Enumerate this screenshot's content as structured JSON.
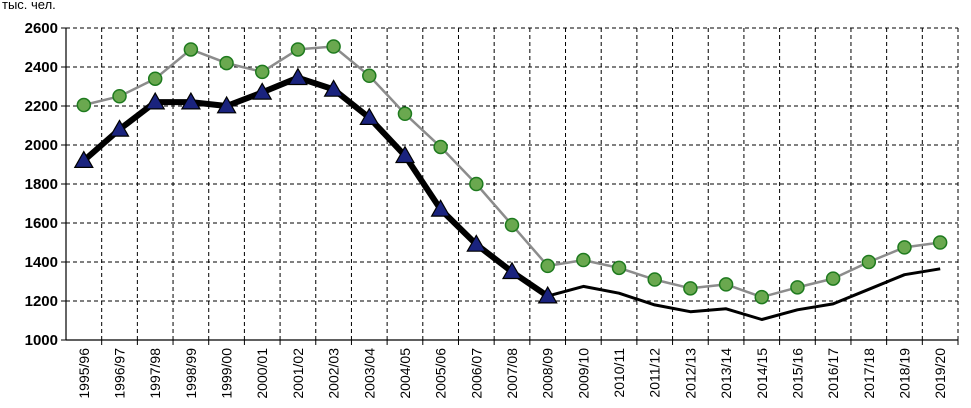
{
  "chart_data": {
    "type": "line",
    "title": "",
    "unit_label": "тыс. чел.",
    "xlabel": "",
    "ylabel": "",
    "ylim": [
      1000,
      2600
    ],
    "yticks": [
      1000,
      1200,
      1400,
      1600,
      1800,
      2000,
      2200,
      2400,
      2600
    ],
    "grid": true,
    "legend": "none",
    "categories": [
      "1995/96",
      "1996/97",
      "1997/98",
      "1998/99",
      "1999/00",
      "2000/01",
      "2001/02",
      "2002/03",
      "2003/04",
      "2004/05",
      "2005/06",
      "2006/07",
      "2007/08",
      "2008/09",
      "2009/10",
      "2010/11",
      "2011/12",
      "2012/13",
      "2013/14",
      "2014/15",
      "2015/16",
      "2016/17",
      "2017/18",
      "2018/19",
      "2019/20"
    ],
    "series": [
      {
        "color": "#8c8c8c",
        "marker": "circle",
        "marker_fill": "#6aa84f",
        "marker_stroke": "#1e7a1e",
        "values": [
          2205,
          2250,
          2340,
          2490,
          2420,
          2375,
          2490,
          2505,
          2355,
          2160,
          1990,
          1800,
          1590,
          1380,
          1410,
          1370,
          1310,
          1265,
          1285,
          1220,
          1270,
          1315,
          1400,
          1475,
          1500
        ]
      },
      {
        "color": "#000000",
        "marker": "triangle",
        "marker_fill": "#1a237e",
        "marker_stroke": "#000000",
        "marker_count": 14,
        "values": [
          1920,
          2080,
          2220,
          2220,
          2200,
          2270,
          2345,
          2285,
          2140,
          1945,
          1670,
          1490,
          1350,
          1225,
          1275,
          1240,
          1180,
          1145,
          1160,
          1105,
          1155,
          1185,
          1260,
          1335,
          1365
        ]
      }
    ]
  }
}
